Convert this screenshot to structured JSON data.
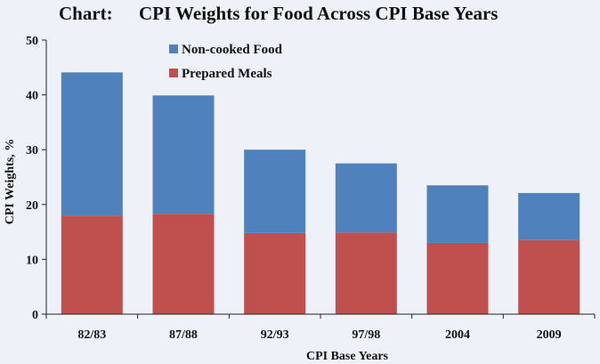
{
  "header": {
    "prefix": "Chart:",
    "title": "CPI Weights for Food Across CPI Base Years"
  },
  "colors": {
    "background": "#eef2f8",
    "non_cooked": "#4f81bd",
    "prepared": "#c0504d",
    "axis": "#222222"
  },
  "chart_data": {
    "type": "bar",
    "stacked": true,
    "title": "CPI Weights for Food Across CPI Base Years",
    "xlabel": "CPI Base Years",
    "ylabel": "CPI Weights, %",
    "categories": [
      "82/83",
      "87/88",
      "92/93",
      "97/98",
      "2004",
      "2009"
    ],
    "series": [
      {
        "name": "Prepared Meals",
        "color": "#c0504d",
        "values": [
          18.0,
          18.3,
          14.8,
          14.9,
          13.0,
          13.5
        ]
      },
      {
        "name": "Non-cooked Food",
        "color": "#4f81bd",
        "values": [
          26.1,
          21.6,
          15.2,
          12.6,
          10.5,
          8.6
        ]
      }
    ],
    "ylim": [
      0,
      50
    ],
    "yticks": [
      0,
      10,
      20,
      30,
      40,
      50
    ],
    "legend_position": "top-center",
    "legend_order": [
      "Non-cooked Food",
      "Prepared Meals"
    ],
    "grid": false
  }
}
